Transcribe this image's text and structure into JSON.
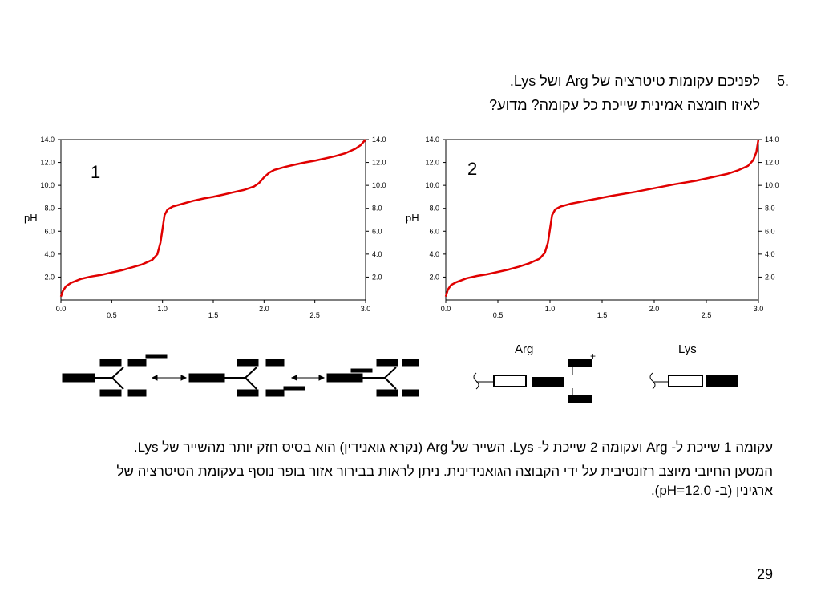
{
  "question": {
    "number": ".5",
    "line1": "לפניכם עקומות טיטרציה של Arg ושל Lys.",
    "line2": "לאיזו חומצה אמינית שייכת כל עקומה? מדוע?"
  },
  "chart_data": [
    {
      "type": "line",
      "panel_label": "1",
      "ylabel": "pH",
      "xlim": [
        0.0,
        3.0
      ],
      "ylim": [
        0.0,
        14.0
      ],
      "x_ticks": [
        "0.0",
        "0.5",
        "1.0",
        "1.5",
        "2.0",
        "2.5",
        "3.0"
      ],
      "y_ticks": [
        "2.0",
        "4.0",
        "6.0",
        "8.0",
        "10.0",
        "12.0",
        "14.0"
      ],
      "series": [
        {
          "color": "#e00000",
          "x": [
            0.0,
            0.02,
            0.05,
            0.1,
            0.2,
            0.3,
            0.4,
            0.5,
            0.6,
            0.7,
            0.8,
            0.9,
            0.95,
            0.98,
            1.0,
            1.02,
            1.05,
            1.1,
            1.2,
            1.3,
            1.4,
            1.5,
            1.6,
            1.7,
            1.8,
            1.9,
            1.95,
            2.0,
            2.05,
            2.1,
            2.2,
            2.3,
            2.4,
            2.5,
            2.6,
            2.7,
            2.8,
            2.9,
            2.95,
            3.0
          ],
          "y": [
            0.3,
            0.8,
            1.2,
            1.5,
            1.85,
            2.05,
            2.2,
            2.4,
            2.6,
            2.85,
            3.1,
            3.5,
            4.0,
            5.0,
            6.2,
            7.4,
            7.9,
            8.15,
            8.4,
            8.65,
            8.85,
            9.0,
            9.2,
            9.4,
            9.6,
            9.9,
            10.2,
            10.7,
            11.1,
            11.35,
            11.6,
            11.8,
            12.0,
            12.15,
            12.35,
            12.55,
            12.8,
            13.2,
            13.5,
            14.0
          ]
        }
      ]
    },
    {
      "type": "line",
      "panel_label": "2",
      "ylabel": "pH",
      "xlim": [
        0.0,
        3.0
      ],
      "ylim": [
        0.0,
        14.0
      ],
      "x_ticks": [
        "0.0",
        "0.5",
        "1.0",
        "1.5",
        "2.0",
        "2.5",
        "3.0"
      ],
      "y_ticks": [
        "2.0",
        "4.0",
        "6.0",
        "8.0",
        "10.0",
        "12.0",
        "14.0"
      ],
      "series": [
        {
          "color": "#e00000",
          "x": [
            0.0,
            0.02,
            0.05,
            0.1,
            0.2,
            0.3,
            0.4,
            0.5,
            0.6,
            0.7,
            0.8,
            0.9,
            0.95,
            0.98,
            1.0,
            1.02,
            1.05,
            1.1,
            1.2,
            1.4,
            1.6,
            1.8,
            2.0,
            2.2,
            2.4,
            2.6,
            2.7,
            2.8,
            2.9,
            2.95,
            2.98,
            3.0
          ],
          "y": [
            0.3,
            0.9,
            1.3,
            1.55,
            1.9,
            2.1,
            2.25,
            2.45,
            2.65,
            2.9,
            3.2,
            3.6,
            4.1,
            5.0,
            6.2,
            7.4,
            7.9,
            8.15,
            8.4,
            8.75,
            9.1,
            9.4,
            9.75,
            10.1,
            10.4,
            10.8,
            11.0,
            11.3,
            11.7,
            12.2,
            12.9,
            14.0
          ]
        }
      ]
    }
  ],
  "structures": {
    "arg_label": "Arg",
    "lys_label": "Lys"
  },
  "answer": {
    "para1": "עקומה 1 שייכת ל- Arg ועקומה 2 שייכת ל- Lys. השייר של Arg (נקרא גואנידין) הוא בסיס חזק יותר מהשייר של Lys.",
    "para2": "המטען החיובי מיוצב רזונטיבית על ידי הקבוצה הגואנידינית. ניתן לראות בבירור אזור בופר נוסף בעקומת הטיטרציה של ארגינין (ב- pH=12.0)."
  },
  "slide_number": "29"
}
